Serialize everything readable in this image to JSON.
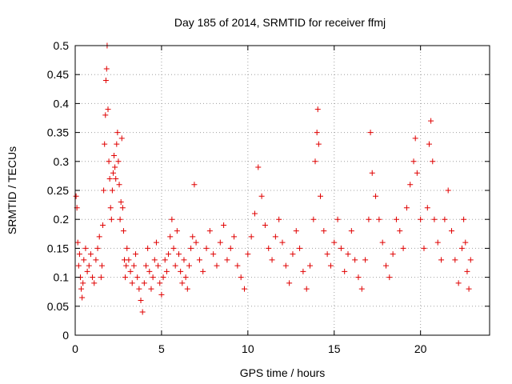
{
  "chart_data": {
    "type": "scatter",
    "title": "Day 185 of 2014, SRMTID for receiver ffmj",
    "xlabel": "GPS time / hours",
    "ylabel": "SRMTID / TECUs",
    "xlim": [
      0,
      24
    ],
    "ylim": [
      0,
      0.5
    ],
    "xticks": [
      0,
      5,
      10,
      15,
      20
    ],
    "xtick_labels": [
      "0",
      "5",
      "10",
      "15",
      "20"
    ],
    "yticks": [
      0,
      0.05,
      0.1,
      0.15,
      0.2,
      0.25,
      0.3,
      0.35,
      0.4,
      0.45,
      0.5
    ],
    "ytick_labels": [
      "0",
      "0.05",
      "0.1",
      "0.15",
      "0.2",
      "0.25",
      "0.3",
      "0.35",
      "0.4",
      "0.45",
      "0.5"
    ],
    "grid": true,
    "marker": "+",
    "color": "#e00000",
    "series": [
      {
        "name": "SRMTID",
        "points": [
          [
            0.05,
            0.24
          ],
          [
            0.1,
            0.22
          ],
          [
            0.15,
            0.16
          ],
          [
            0.2,
            0.12
          ],
          [
            0.25,
            0.14
          ],
          [
            0.3,
            0.1
          ],
          [
            0.35,
            0.08
          ],
          [
            0.4,
            0.065
          ],
          [
            0.45,
            0.09
          ],
          [
            0.5,
            0.13
          ],
          [
            0.6,
            0.15
          ],
          [
            0.7,
            0.11
          ],
          [
            0.8,
            0.12
          ],
          [
            0.9,
            0.14
          ],
          [
            1.0,
            0.1
          ],
          [
            1.1,
            0.09
          ],
          [
            1.2,
            0.13
          ],
          [
            1.3,
            0.15
          ],
          [
            1.4,
            0.17
          ],
          [
            1.5,
            0.1
          ],
          [
            1.55,
            0.12
          ],
          [
            1.6,
            0.19
          ],
          [
            1.65,
            0.25
          ],
          [
            1.7,
            0.33
          ],
          [
            1.75,
            0.38
          ],
          [
            1.78,
            0.44
          ],
          [
            1.82,
            0.46
          ],
          [
            1.85,
            0.5
          ],
          [
            1.9,
            0.39
          ],
          [
            1.95,
            0.3
          ],
          [
            2.0,
            0.27
          ],
          [
            2.05,
            0.22
          ],
          [
            2.1,
            0.2
          ],
          [
            2.15,
            0.25
          ],
          [
            2.2,
            0.28
          ],
          [
            2.25,
            0.31
          ],
          [
            2.3,
            0.29
          ],
          [
            2.35,
            0.27
          ],
          [
            2.4,
            0.33
          ],
          [
            2.45,
            0.35
          ],
          [
            2.5,
            0.3
          ],
          [
            2.55,
            0.26
          ],
          [
            2.6,
            0.2
          ],
          [
            2.65,
            0.23
          ],
          [
            2.7,
            0.34
          ],
          [
            2.75,
            0.22
          ],
          [
            2.8,
            0.18
          ],
          [
            2.85,
            0.13
          ],
          [
            2.9,
            0.1
          ],
          [
            2.95,
            0.12
          ],
          [
            3.0,
            0.15
          ],
          [
            3.1,
            0.13
          ],
          [
            3.2,
            0.11
          ],
          [
            3.3,
            0.09
          ],
          [
            3.4,
            0.12
          ],
          [
            3.5,
            0.14
          ],
          [
            3.6,
            0.1
          ],
          [
            3.7,
            0.08
          ],
          [
            3.8,
            0.06
          ],
          [
            3.9,
            0.04
          ],
          [
            4.0,
            0.09
          ],
          [
            4.1,
            0.12
          ],
          [
            4.2,
            0.15
          ],
          [
            4.3,
            0.11
          ],
          [
            4.4,
            0.08
          ],
          [
            4.5,
            0.1
          ],
          [
            4.6,
            0.13
          ],
          [
            4.7,
            0.16
          ],
          [
            4.8,
            0.12
          ],
          [
            4.9,
            0.09
          ],
          [
            5.0,
            0.07
          ],
          [
            5.1,
            0.1
          ],
          [
            5.2,
            0.13
          ],
          [
            5.3,
            0.11
          ],
          [
            5.4,
            0.14
          ],
          [
            5.5,
            0.17
          ],
          [
            5.6,
            0.2
          ],
          [
            5.7,
            0.15
          ],
          [
            5.8,
            0.12
          ],
          [
            5.9,
            0.18
          ],
          [
            6.0,
            0.14
          ],
          [
            6.1,
            0.11
          ],
          [
            6.2,
            0.09
          ],
          [
            6.3,
            0.13
          ],
          [
            6.4,
            0.1
          ],
          [
            6.5,
            0.08
          ],
          [
            6.6,
            0.12
          ],
          [
            6.7,
            0.15
          ],
          [
            6.8,
            0.17
          ],
          [
            6.9,
            0.26
          ],
          [
            7.0,
            0.16
          ],
          [
            7.2,
            0.13
          ],
          [
            7.4,
            0.11
          ],
          [
            7.6,
            0.15
          ],
          [
            7.8,
            0.18
          ],
          [
            8.0,
            0.14
          ],
          [
            8.2,
            0.12
          ],
          [
            8.4,
            0.16
          ],
          [
            8.6,
            0.19
          ],
          [
            8.8,
            0.13
          ],
          [
            9.0,
            0.15
          ],
          [
            9.2,
            0.17
          ],
          [
            9.4,
            0.12
          ],
          [
            9.6,
            0.1
          ],
          [
            9.8,
            0.08
          ],
          [
            10.0,
            0.14
          ],
          [
            10.2,
            0.17
          ],
          [
            10.4,
            0.21
          ],
          [
            10.6,
            0.29
          ],
          [
            10.8,
            0.24
          ],
          [
            11.0,
            0.19
          ],
          [
            11.2,
            0.15
          ],
          [
            11.4,
            0.13
          ],
          [
            11.6,
            0.17
          ],
          [
            11.8,
            0.2
          ],
          [
            12.0,
            0.16
          ],
          [
            12.2,
            0.12
          ],
          [
            12.4,
            0.09
          ],
          [
            12.6,
            0.14
          ],
          [
            12.8,
            0.18
          ],
          [
            13.0,
            0.15
          ],
          [
            13.2,
            0.11
          ],
          [
            13.4,
            0.08
          ],
          [
            13.6,
            0.12
          ],
          [
            13.8,
            0.2
          ],
          [
            13.9,
            0.3
          ],
          [
            14.0,
            0.35
          ],
          [
            14.05,
            0.39
          ],
          [
            14.1,
            0.33
          ],
          [
            14.2,
            0.24
          ],
          [
            14.4,
            0.18
          ],
          [
            14.6,
            0.14
          ],
          [
            14.8,
            0.12
          ],
          [
            15.0,
            0.16
          ],
          [
            15.2,
            0.2
          ],
          [
            15.4,
            0.15
          ],
          [
            15.6,
            0.11
          ],
          [
            15.8,
            0.14
          ],
          [
            16.0,
            0.18
          ],
          [
            16.2,
            0.13
          ],
          [
            16.4,
            0.1
          ],
          [
            16.6,
            0.08
          ],
          [
            16.8,
            0.13
          ],
          [
            17.0,
            0.2
          ],
          [
            17.1,
            0.35
          ],
          [
            17.2,
            0.28
          ],
          [
            17.4,
            0.24
          ],
          [
            17.6,
            0.2
          ],
          [
            17.8,
            0.16
          ],
          [
            18.0,
            0.12
          ],
          [
            18.2,
            0.1
          ],
          [
            18.4,
            0.14
          ],
          [
            18.6,
            0.2
          ],
          [
            18.8,
            0.18
          ],
          [
            19.0,
            0.15
          ],
          [
            19.2,
            0.22
          ],
          [
            19.4,
            0.26
          ],
          [
            19.6,
            0.3
          ],
          [
            19.7,
            0.34
          ],
          [
            19.8,
            0.28
          ],
          [
            20.0,
            0.2
          ],
          [
            20.2,
            0.15
          ],
          [
            20.4,
            0.22
          ],
          [
            20.5,
            0.33
          ],
          [
            20.6,
            0.37
          ],
          [
            20.7,
            0.3
          ],
          [
            20.8,
            0.2
          ],
          [
            21.0,
            0.16
          ],
          [
            21.2,
            0.13
          ],
          [
            21.4,
            0.2
          ],
          [
            21.6,
            0.25
          ],
          [
            21.8,
            0.18
          ],
          [
            22.0,
            0.13
          ],
          [
            22.2,
            0.09
          ],
          [
            22.4,
            0.15
          ],
          [
            22.5,
            0.2
          ],
          [
            22.6,
            0.16
          ],
          [
            22.7,
            0.11
          ],
          [
            22.8,
            0.08
          ],
          [
            22.9,
            0.13
          ]
        ]
      }
    ]
  }
}
